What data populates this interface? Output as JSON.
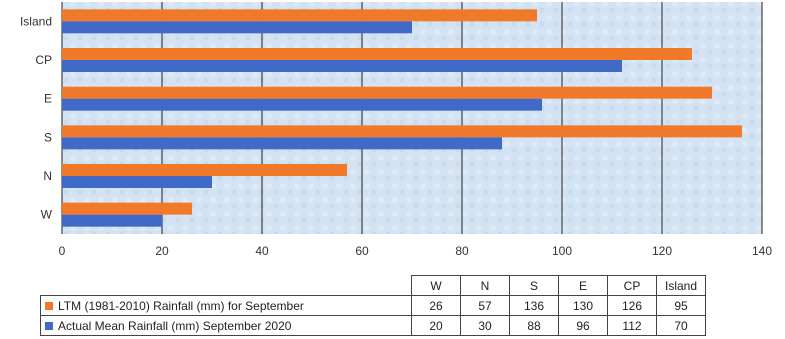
{
  "chart_data": {
    "type": "bar",
    "orientation": "horizontal",
    "categories": [
      "W",
      "N",
      "S",
      "E",
      "CP",
      "Island"
    ],
    "series": [
      {
        "name": "LTM (1981-2010)  Rainfall (mm)  for September",
        "color": "#f07a2a",
        "values": [
          26,
          57,
          136,
          130,
          126,
          95
        ]
      },
      {
        "name": "Actual Mean Rainfall (mm) September 2020",
        "color": "#4169c8",
        "values": [
          20,
          30,
          88,
          96,
          112,
          70
        ]
      }
    ],
    "xlim": [
      0,
      140
    ],
    "xticks": [
      "0",
      "20",
      "40",
      "60",
      "80",
      "100",
      "120",
      "140"
    ],
    "grid": true,
    "legend": "data table below chart"
  },
  "table": {
    "headers": [
      "W",
      "N",
      "S",
      "E",
      "CP",
      "Island"
    ],
    "rows": [
      {
        "label": "LTM (1981-2010)  Rainfall (mm)  for September",
        "color": "#f07a2a",
        "cells": [
          "26",
          "57",
          "136",
          "130",
          "126",
          "95"
        ]
      },
      {
        "label": "Actual Mean Rainfall (mm) September 2020",
        "color": "#4169c8",
        "cells": [
          "20",
          "30",
          "88",
          "96",
          "112",
          "70"
        ]
      }
    ]
  }
}
